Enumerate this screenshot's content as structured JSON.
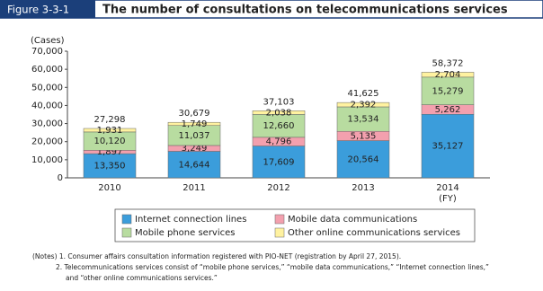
{
  "figure_label": "Figure 3-3-1",
  "chart_data": {
    "type": "stacked-bar",
    "title": "The number of consultations on telecommunications services",
    "y_label": "(Cases)",
    "x_label": "(FY)",
    "categories": [
      "2010",
      "2011",
      "2012",
      "2013",
      "2014"
    ],
    "series": [
      {
        "name": "Internet connection lines",
        "color": "#3b9ddb",
        "values": [
          13350,
          14644,
          17609,
          20564,
          35127
        ],
        "value_labels": [
          "13,350",
          "14,644",
          "17,609",
          "20,564",
          "35,127"
        ]
      },
      {
        "name": "Mobile data communications",
        "color": "#f3a0ae",
        "values": [
          1897,
          3249,
          4796,
          5135,
          5262
        ],
        "value_labels": [
          "1,897",
          "3,249",
          "4,796",
          "5,135",
          "5,262"
        ]
      },
      {
        "name": "Mobile phone services",
        "color": "#b8dca0",
        "values": [
          10120,
          11037,
          12660,
          13534,
          15279
        ],
        "value_labels": [
          "10,120",
          "11,037",
          "12,660",
          "13,534",
          "15,279"
        ]
      },
      {
        "name": "Other online communications services",
        "color": "#fff2a0",
        "values": [
          1931,
          1749,
          2038,
          2392,
          2704
        ],
        "value_labels": [
          "1,931",
          "1,749",
          "2,038",
          "2,392",
          "2,704"
        ]
      }
    ],
    "totals": {
      "values": [
        27298,
        30679,
        37103,
        41625,
        58372
      ],
      "value_labels": [
        "27,298",
        "30,679",
        "37,103",
        "41,625",
        "58,372"
      ]
    },
    "ylim": [
      0,
      70000
    ],
    "yticks": [
      0,
      {
        "value": 10000,
        "label": "10,000"
      },
      {
        "value": 20000,
        "label": "20,000"
      },
      {
        "value": 30000,
        "label": "30,000"
      },
      {
        "value": 40000,
        "label": "40,000"
      },
      {
        "value": 50000,
        "label": "50,000"
      },
      {
        "value": 60000,
        "label": "60,000"
      },
      {
        "value": 70000,
        "label": "70,000"
      }
    ],
    "grid": false
  },
  "notes": [
    "(Notes) 1. Consumer affairs consultation information registered with PIO-NET (registration by April 27, 2015).",
    "2. Telecommunications services consist of “mobile phone services,” “mobile data communications,” “Internet connection lines,”",
    "and “other online communications services.”"
  ]
}
